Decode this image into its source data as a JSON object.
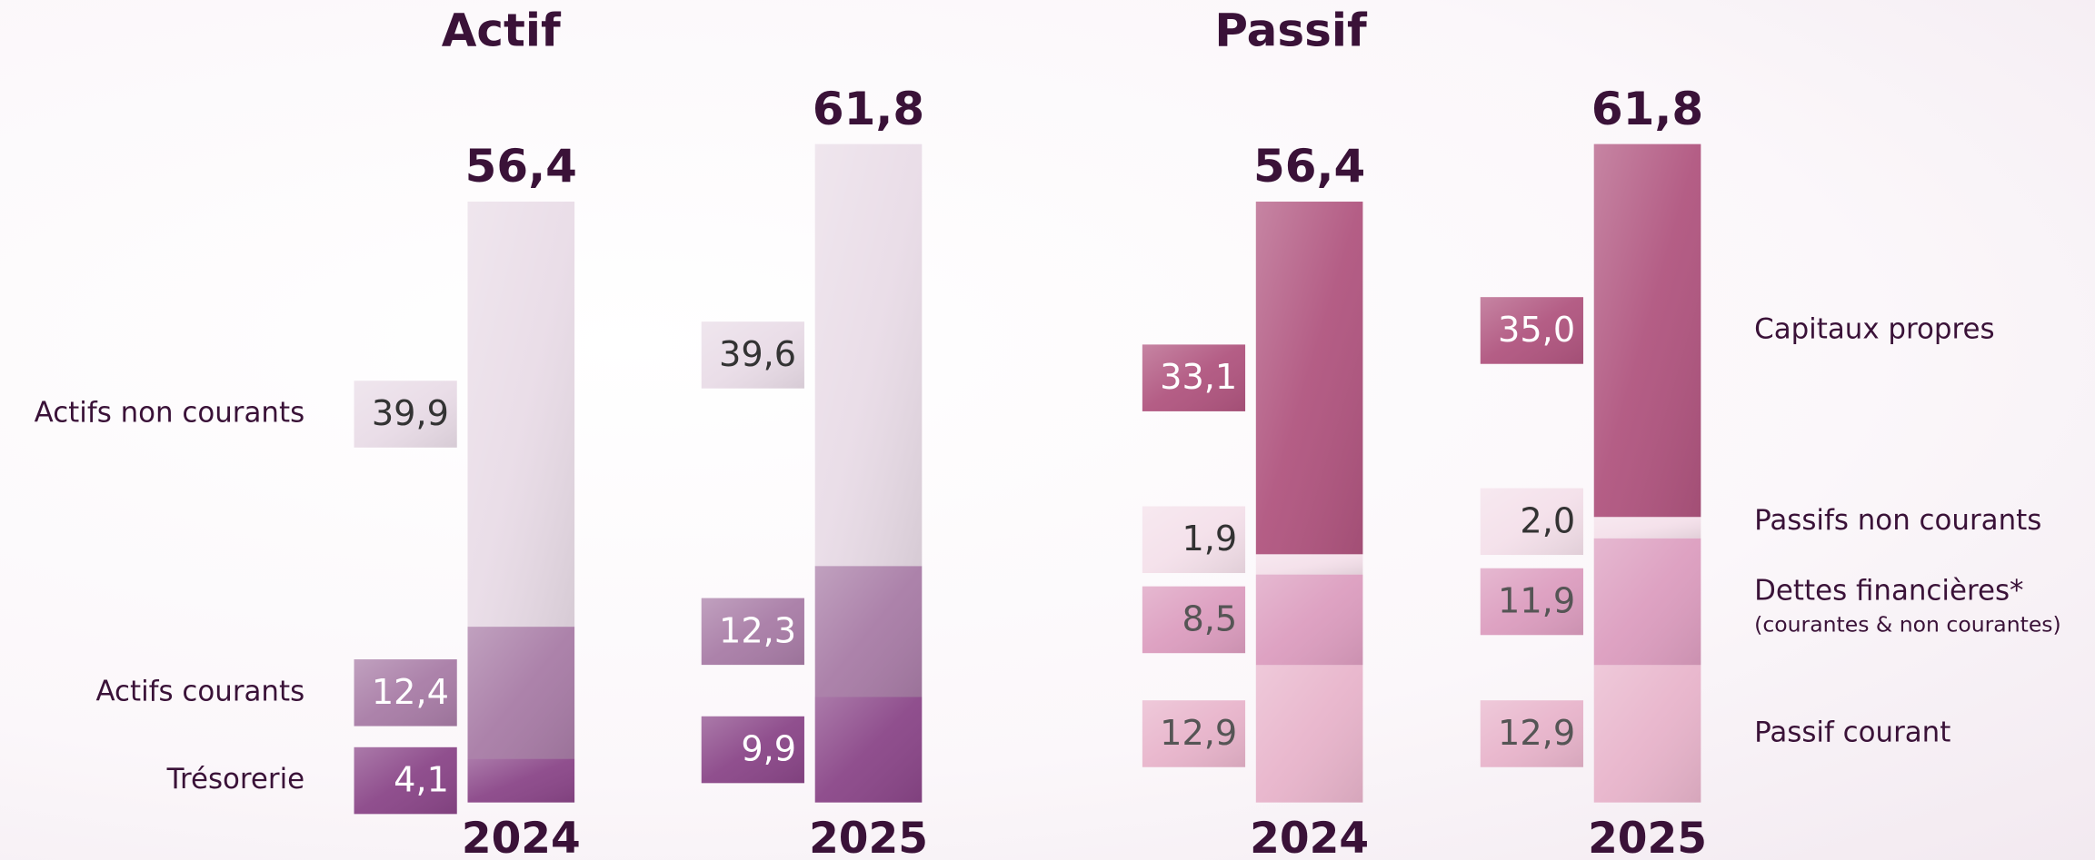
{
  "chart_data": [
    {
      "type": "stacked_bar",
      "title": "Actif",
      "legend": "left",
      "categories": [
        "2024",
        "2025"
      ],
      "totals": [
        56.4,
        61.8
      ],
      "total_labels": [
        "56,4",
        "61,8"
      ],
      "series": [
        {
          "name": "Trésorerie",
          "color": "#8a4688",
          "values": [
            4.1,
            9.9
          ],
          "value_labels": [
            "4,1",
            "9,9"
          ]
        },
        {
          "name": "Actifs courants",
          "color": "#a87ca6",
          "values": [
            12.4,
            12.3
          ],
          "value_labels": [
            "12,4",
            "12,3"
          ]
        },
        {
          "name": "Actifs non courants",
          "color": "#e9dce7",
          "values": [
            39.9,
            39.6
          ],
          "value_labels": [
            "39,9",
            "39,6"
          ]
        }
      ]
    },
    {
      "type": "stacked_bar",
      "title": "Passif",
      "legend": "right",
      "categories": [
        "2024",
        "2025"
      ],
      "totals": [
        56.4,
        61.8
      ],
      "total_labels": [
        "56,4",
        "61,8"
      ],
      "series": [
        {
          "name": "Passif courant",
          "color": "#e8b4cb",
          "values": [
            12.9,
            12.9
          ],
          "value_labels": [
            "12,9",
            "12,9"
          ]
        },
        {
          "name": "Dettes financières*",
          "note": "(courantes & non courantes)",
          "color": "#dc9dbf",
          "values": [
            8.5,
            11.9
          ],
          "value_labels": [
            "8,5",
            "11,9"
          ]
        },
        {
          "name": "Passifs non courants",
          "color": "#f4e0ea",
          "values": [
            1.9,
            2.0
          ],
          "value_labels": [
            "1,9",
            "2,0"
          ]
        },
        {
          "name": "Capitaux propres",
          "color": "#b0557f",
          "values": [
            33.1,
            35.0
          ],
          "value_labels": [
            "33,1",
            "35,0"
          ]
        }
      ]
    }
  ]
}
